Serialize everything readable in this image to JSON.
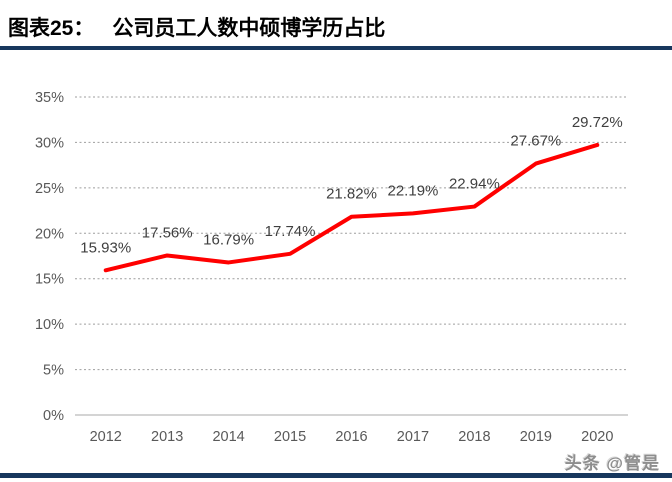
{
  "header": {
    "figure_label": "图表25：",
    "figure_title": "公司员工人数中硕博学历占比"
  },
  "watermark": {
    "text": "头条 @管是"
  },
  "colors": {
    "accent_navy": "#17375D",
    "line_red": "#FF0000",
    "grid_gray": "#9E9E9E",
    "axis_line_gray": "#C6C6C6",
    "tick_text_gray": "#595959",
    "data_label_gray": "#3F3F3F"
  },
  "chart_data": {
    "type": "line",
    "title": "公司员工人数中硕博学历占比",
    "categories": [
      "2012",
      "2013",
      "2014",
      "2015",
      "2016",
      "2017",
      "2018",
      "2019",
      "2020"
    ],
    "values": [
      15.93,
      17.56,
      16.79,
      17.74,
      21.82,
      22.19,
      22.94,
      27.67,
      29.72
    ],
    "point_labels": [
      "15.93%",
      "17.56%",
      "16.79%",
      "17.74%",
      "21.82%",
      "22.19%",
      "22.94%",
      "27.67%",
      "29.72%"
    ],
    "xlabel": "",
    "ylabel": "",
    "ylim": [
      0,
      35
    ],
    "ytick_labels": [
      "0%",
      "5%",
      "10%",
      "15%",
      "20%",
      "25%",
      "30%",
      "35%"
    ],
    "grid": "horizontal-dashed",
    "legend": "none",
    "line_color": "#FF0000"
  }
}
